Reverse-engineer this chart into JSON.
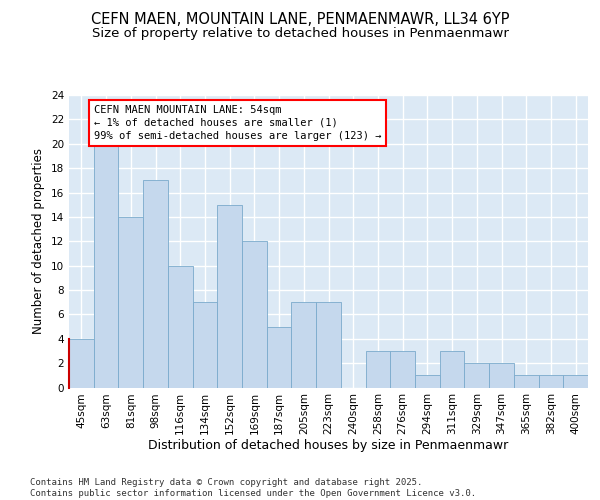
{
  "title_line1": "CEFN MAEN, MOUNTAIN LANE, PENMAENMAWR, LL34 6YP",
  "title_line2": "Size of property relative to detached houses in Penmaenmawr",
  "xlabel": "Distribution of detached houses by size in Penmaenmawr",
  "ylabel": "Number of detached properties",
  "categories": [
    "45sqm",
    "63sqm",
    "81sqm",
    "98sqm",
    "116sqm",
    "134sqm",
    "152sqm",
    "169sqm",
    "187sqm",
    "205sqm",
    "223sqm",
    "240sqm",
    "258sqm",
    "276sqm",
    "294sqm",
    "311sqm",
    "329sqm",
    "347sqm",
    "365sqm",
    "382sqm",
    "400sqm"
  ],
  "values": [
    4,
    20,
    14,
    17,
    10,
    7,
    15,
    12,
    5,
    7,
    7,
    0,
    3,
    3,
    1,
    3,
    2,
    2,
    1,
    1,
    1
  ],
  "bar_color": "#c5d8ed",
  "bar_edge_color": "#7aaacc",
  "background_color": "#dce9f5",
  "grid_color": "#ffffff",
  "annotation_text": "CEFN MAEN MOUNTAIN LANE: 54sqm\n← 1% of detached houses are smaller (1)\n99% of semi-detached houses are larger (123) →",
  "red_line_color": "#cc0000",
  "ylim_max": 24,
  "yticks": [
    0,
    2,
    4,
    6,
    8,
    10,
    12,
    14,
    16,
    18,
    20,
    22,
    24
  ],
  "footer_text": "Contains HM Land Registry data © Crown copyright and database right 2025.\nContains public sector information licensed under the Open Government Licence v3.0.",
  "title_fontsize": 10.5,
  "subtitle_fontsize": 9.5,
  "ylabel_fontsize": 8.5,
  "xlabel_fontsize": 9,
  "tick_fontsize": 7.5,
  "annotation_fontsize": 7.5,
  "footer_fontsize": 6.5
}
